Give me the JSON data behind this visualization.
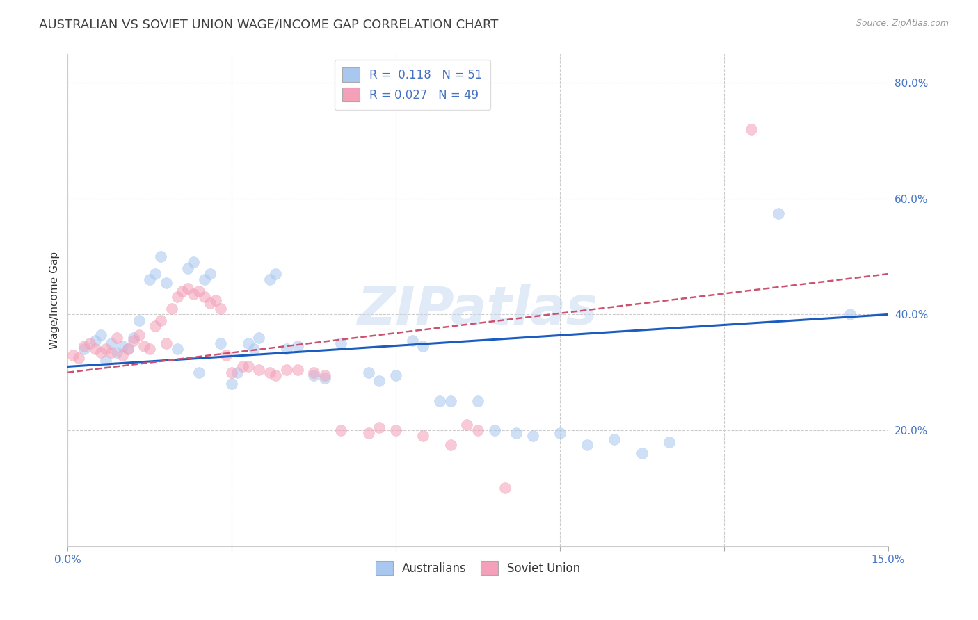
{
  "title": "AUSTRALIAN VS SOVIET UNION WAGE/INCOME GAP CORRELATION CHART",
  "source": "Source: ZipAtlas.com",
  "ylabel": "Wage/Income Gap",
  "xlim": [
    0.0,
    0.15
  ],
  "ylim": [
    0.0,
    0.85
  ],
  "yticks": [
    0.2,
    0.4,
    0.6,
    0.8
  ],
  "ytick_labels": [
    "20.0%",
    "40.0%",
    "60.0%",
    "80.0%"
  ],
  "xticks": [
    0.0,
    0.03,
    0.06,
    0.09,
    0.12,
    0.15
  ],
  "xtick_labels": [
    "0.0%",
    "",
    "",
    "",
    "",
    "15.0%"
  ],
  "aus_R": 0.118,
  "aus_N": 51,
  "sov_R": 0.027,
  "sov_N": 49,
  "aus_color": "#a8c8f0",
  "sov_color": "#f4a0b8",
  "aus_line_color": "#1a5cbf",
  "sov_line_color": "#cc5070",
  "background_color": "#ffffff",
  "grid_color": "#cccccc",
  "title_color": "#404040",
  "label_color": "#4472c4",
  "watermark": "ZIPatlas",
  "aus_x": [
    0.003,
    0.005,
    0.006,
    0.007,
    0.008,
    0.009,
    0.01,
    0.011,
    0.012,
    0.013,
    0.015,
    0.016,
    0.017,
    0.018,
    0.02,
    0.022,
    0.023,
    0.024,
    0.025,
    0.026,
    0.028,
    0.03,
    0.031,
    0.033,
    0.034,
    0.035,
    0.037,
    0.038,
    0.04,
    0.042,
    0.045,
    0.047,
    0.05,
    0.055,
    0.057,
    0.06,
    0.063,
    0.065,
    0.068,
    0.07,
    0.075,
    0.078,
    0.082,
    0.085,
    0.09,
    0.095,
    0.1,
    0.105,
    0.11,
    0.13,
    0.143
  ],
  "aus_y": [
    0.34,
    0.355,
    0.365,
    0.32,
    0.35,
    0.335,
    0.345,
    0.34,
    0.36,
    0.39,
    0.46,
    0.47,
    0.5,
    0.455,
    0.34,
    0.48,
    0.49,
    0.3,
    0.46,
    0.47,
    0.35,
    0.28,
    0.3,
    0.35,
    0.34,
    0.36,
    0.46,
    0.47,
    0.34,
    0.345,
    0.295,
    0.29,
    0.35,
    0.3,
    0.285,
    0.295,
    0.355,
    0.345,
    0.25,
    0.25,
    0.25,
    0.2,
    0.195,
    0.19,
    0.195,
    0.175,
    0.185,
    0.16,
    0.18,
    0.575,
    0.4
  ],
  "sov_x": [
    0.001,
    0.002,
    0.003,
    0.004,
    0.005,
    0.006,
    0.007,
    0.008,
    0.009,
    0.01,
    0.011,
    0.012,
    0.013,
    0.014,
    0.015,
    0.016,
    0.017,
    0.018,
    0.019,
    0.02,
    0.021,
    0.022,
    0.023,
    0.024,
    0.025,
    0.026,
    0.027,
    0.028,
    0.029,
    0.03,
    0.032,
    0.033,
    0.035,
    0.037,
    0.038,
    0.04,
    0.042,
    0.045,
    0.047,
    0.05,
    0.055,
    0.057,
    0.06,
    0.065,
    0.07,
    0.073,
    0.075,
    0.08,
    0.125
  ],
  "sov_y": [
    0.33,
    0.325,
    0.345,
    0.35,
    0.34,
    0.335,
    0.34,
    0.335,
    0.36,
    0.33,
    0.34,
    0.355,
    0.365,
    0.345,
    0.34,
    0.38,
    0.39,
    0.35,
    0.41,
    0.43,
    0.44,
    0.445,
    0.435,
    0.44,
    0.43,
    0.42,
    0.425,
    0.41,
    0.33,
    0.3,
    0.31,
    0.31,
    0.305,
    0.3,
    0.295,
    0.305,
    0.305,
    0.3,
    0.295,
    0.2,
    0.195,
    0.205,
    0.2,
    0.19,
    0.175,
    0.21,
    0.2,
    0.1,
    0.72
  ],
  "title_fontsize": 13,
  "axis_label_fontsize": 11,
  "tick_fontsize": 11,
  "legend_fontsize": 12,
  "marker_size": 130,
  "marker_alpha": 0.55,
  "marker_lw": 0.5
}
